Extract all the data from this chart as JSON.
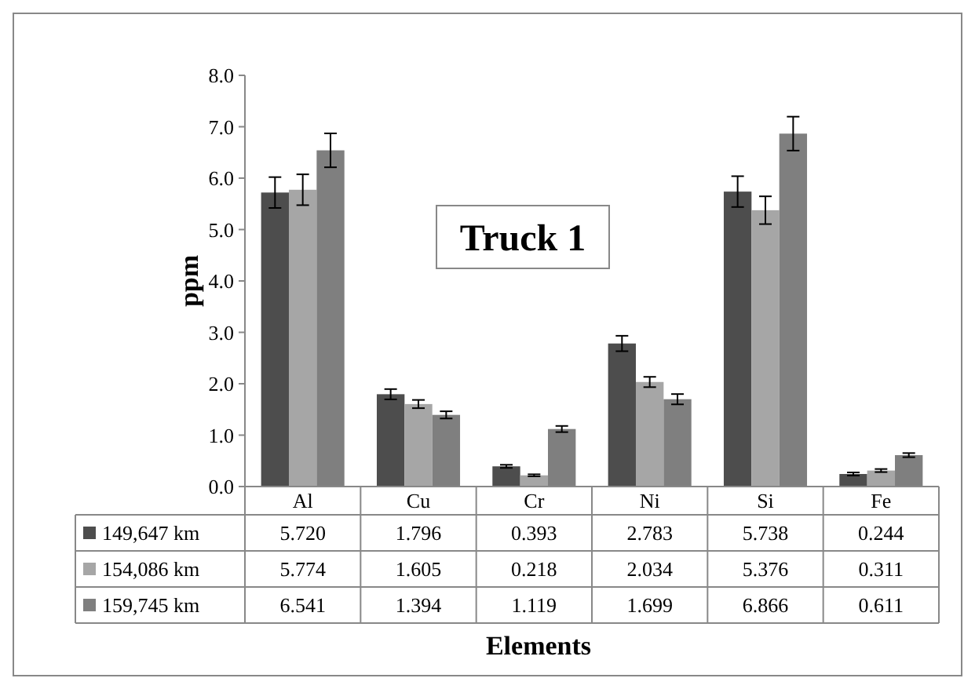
{
  "chart_data": {
    "type": "bar",
    "title": "Truck 1",
    "xlabel": "Elements",
    "ylabel": "ppm",
    "categories": [
      "Al",
      "Cu",
      "Cr",
      "Ni",
      "Si",
      "Fe"
    ],
    "series": [
      {
        "name": "149,647 km",
        "color": "#4d4d4d",
        "values": [
          5.72,
          1.796,
          0.393,
          2.783,
          5.738,
          0.244
        ],
        "value_labels": [
          "5.720",
          "1.796",
          "0.393",
          "2.783",
          "5.738",
          "0.244"
        ],
        "errors": [
          0.3,
          0.1,
          0.03,
          0.15,
          0.3,
          0.03
        ]
      },
      {
        "name": "154,086 km",
        "color": "#a6a6a6",
        "values": [
          5.774,
          1.605,
          0.218,
          2.034,
          5.376,
          0.311
        ],
        "value_labels": [
          "5.774",
          "1.605",
          "0.218",
          "2.034",
          "5.376",
          "0.311"
        ],
        "errors": [
          0.3,
          0.08,
          0.02,
          0.1,
          0.27,
          0.03
        ]
      },
      {
        "name": "159,745 km",
        "color": "#7f7f7f",
        "values": [
          6.541,
          1.394,
          1.119,
          1.699,
          6.866,
          0.611
        ],
        "value_labels": [
          "6.541",
          "1.394",
          "1.119",
          "1.699",
          "6.866",
          "0.611"
        ],
        "errors": [
          0.33,
          0.07,
          0.06,
          0.1,
          0.33,
          0.04
        ]
      }
    ],
    "ylim": [
      0,
      8
    ],
    "yticks": [
      {
        "value": 0,
        "label": "0.0"
      },
      {
        "value": 1,
        "label": "1.0"
      },
      {
        "value": 2,
        "label": "2.0"
      },
      {
        "value": 3,
        "label": "3.0"
      },
      {
        "value": 4,
        "label": "4.0"
      },
      {
        "value": 5,
        "label": "5.0"
      },
      {
        "value": 6,
        "label": "6.0"
      },
      {
        "value": 7,
        "label": "7.0"
      },
      {
        "value": 8,
        "label": "8.0"
      }
    ],
    "legend": "bottom",
    "grid": false
  }
}
